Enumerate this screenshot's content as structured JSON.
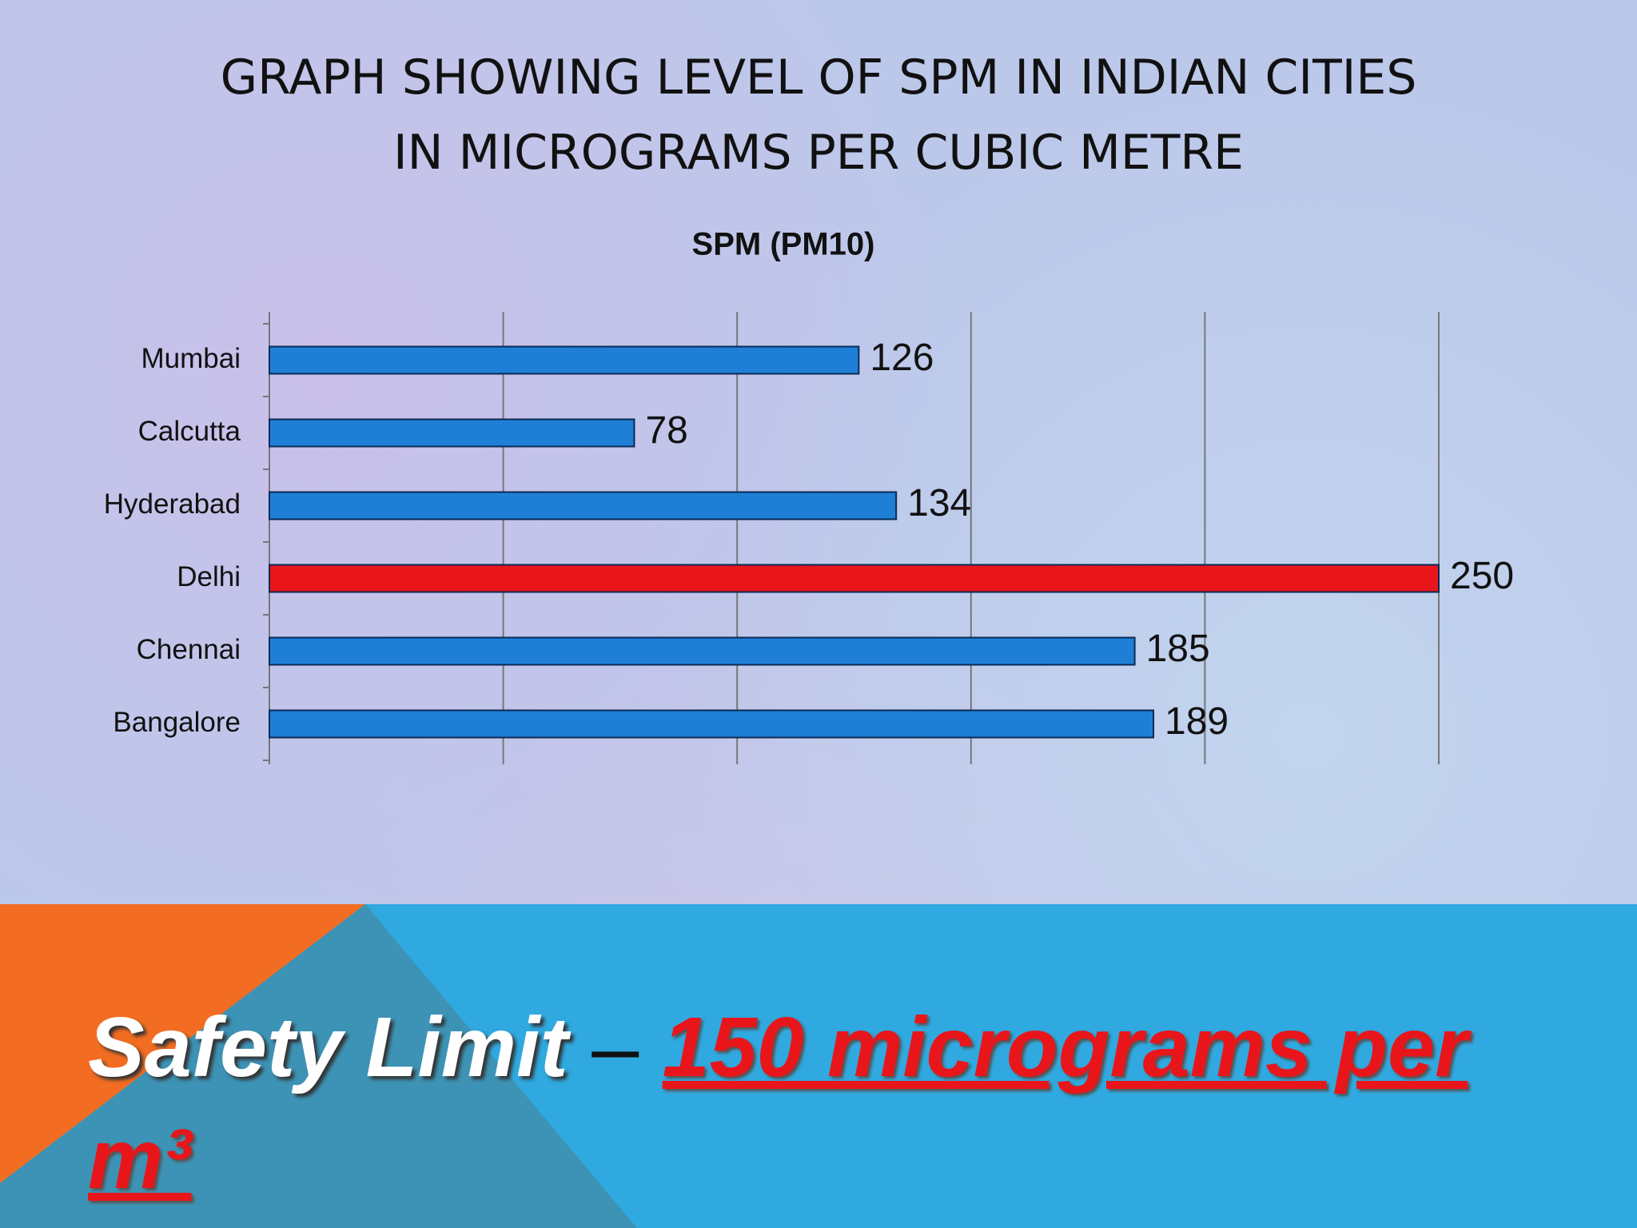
{
  "slide": {
    "title_lines": [
      "GRAPH SHOWING LEVEL OF SPM IN INDIAN CITIES",
      "IN MICROGRAMS PER CUBIC METRE"
    ]
  },
  "chart_data": {
    "type": "bar",
    "orientation": "horizontal",
    "title": "SPM (PM10)",
    "categories": [
      "Mumbai",
      "Calcutta",
      "Hyderabad",
      "Delhi",
      "Chennai",
      "Bangalore"
    ],
    "values": [
      126,
      78,
      134,
      250,
      185,
      189
    ],
    "colors": [
      "#1f7fd6",
      "#1f7fd6",
      "#1f7fd6",
      "#e8161b",
      "#1f7fd6",
      "#1f7fd6"
    ],
    "xlim": [
      0,
      250
    ],
    "xticks": [
      0,
      50,
      100,
      150,
      200,
      250
    ],
    "grid": true
  },
  "footer": {
    "label": "Safety Limit",
    "dash": "–",
    "limit": "150 micrograms per m³"
  }
}
